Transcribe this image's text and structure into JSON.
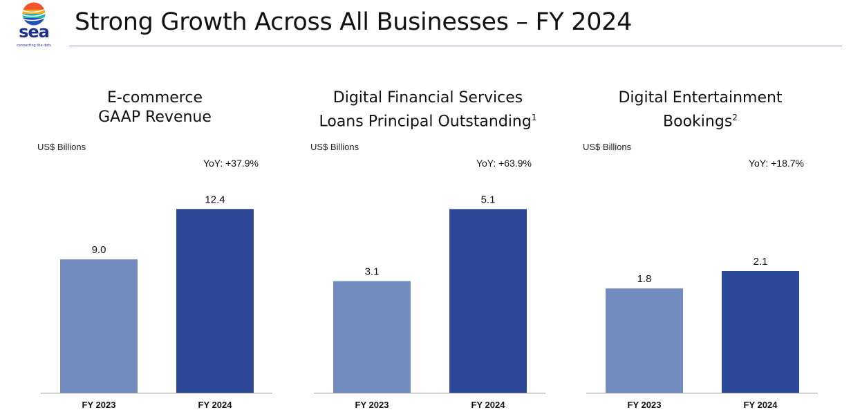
{
  "header": {
    "title": "Strong Growth Across All Businesses – FY 2024",
    "logo": {
      "word": "sea",
      "tagline": "connecting the dots"
    }
  },
  "colors": {
    "fy2023": "#738cbf",
    "fy2024": "#2c4795",
    "axis": "#9a9a9a"
  },
  "chart_data": [
    {
      "type": "bar",
      "title_lines": [
        "E-commerce",
        "GAAP Revenue"
      ],
      "title_sup": "",
      "unit": "US$ Billions",
      "yoy": "YoY: +37.9%",
      "categories": [
        "FY 2023",
        "FY 2024"
      ],
      "values": [
        9.0,
        12.4
      ],
      "value_labels": [
        "9.0",
        "12.4"
      ],
      "ylim": [
        0,
        14.0
      ]
    },
    {
      "type": "bar",
      "title_lines": [
        "Digital Financial Services",
        "Loans Principal Outstanding"
      ],
      "title_sup": "1",
      "unit": "US$ Billions",
      "yoy": "YoY: +63.9%",
      "categories": [
        "FY 2023",
        "FY 2024"
      ],
      "values": [
        3.1,
        5.1
      ],
      "value_labels": [
        "3.1",
        "5.1"
      ],
      "ylim": [
        0,
        5.76
      ]
    },
    {
      "type": "bar",
      "title_lines": [
        "Digital Entertainment",
        "Bookings"
      ],
      "title_sup": "2",
      "unit": "US$ Billions",
      "yoy": "YoY: +18.7%",
      "categories": [
        "FY 2023",
        "FY 2024"
      ],
      "values": [
        1.8,
        2.1
      ],
      "value_labels": [
        "1.8",
        "2.1"
      ],
      "ylim": [
        0,
        3.58
      ]
    }
  ]
}
